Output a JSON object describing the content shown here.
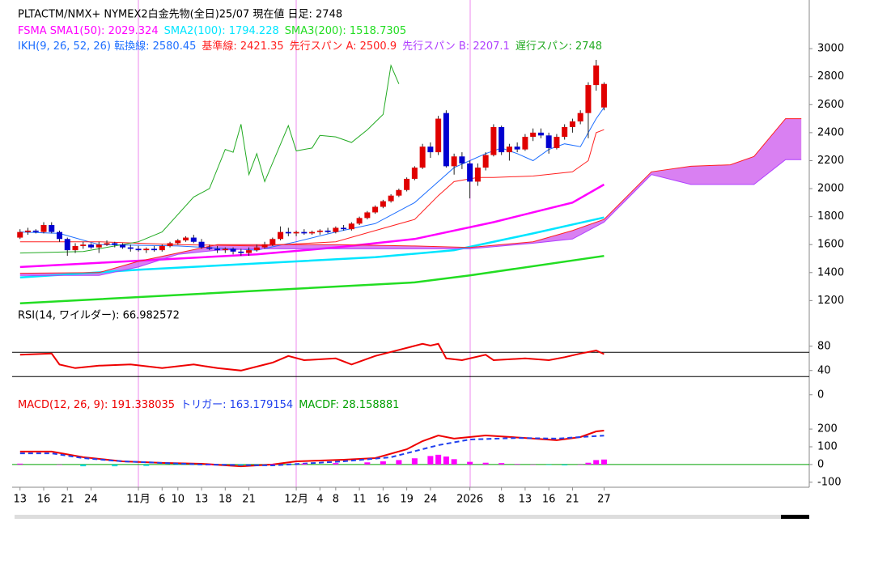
{
  "chart_data": [
    {
      "type": "candlestick",
      "title": "PLTACTM/NMX+ NYMEX2白金先物(全日)25/07  現在値 日足: 2748",
      "xlim": [
        -1,
        100
      ],
      "ylim": [
        1150,
        3290
      ],
      "yticks": [
        1200,
        1400,
        1600,
        1800,
        2000,
        2200,
        2400,
        2600,
        2800,
        3000
      ],
      "up_color": "#e00000",
      "down_color": "#0000d0",
      "x": [
        0,
        1,
        2,
        3,
        4,
        5,
        6,
        7,
        8,
        9,
        10,
        11,
        12,
        13,
        14,
        15,
        16,
        17,
        18,
        19,
        20,
        21,
        22,
        23,
        24,
        25,
        26,
        27,
        28,
        29,
        30,
        31,
        32,
        33,
        34,
        35,
        36,
        37,
        38,
        39,
        40,
        41,
        42,
        43,
        44,
        45,
        46,
        47,
        48,
        49,
        50,
        51,
        52,
        53,
        54,
        55,
        56,
        57,
        58,
        59,
        60,
        61,
        62,
        63,
        64,
        65,
        66,
        67,
        68,
        69,
        70,
        71,
        72,
        73,
        74
      ],
      "open": [
        1650,
        1690,
        1700,
        1690,
        1740,
        1690,
        1640,
        1560,
        1590,
        1600,
        1580,
        1600,
        1610,
        1600,
        1580,
        1570,
        1560,
        1570,
        1560,
        1590,
        1610,
        1630,
        1650,
        1620,
        1580,
        1570,
        1560,
        1570,
        1550,
        1540,
        1560,
        1580,
        1600,
        1640,
        1690,
        1680,
        1690,
        1680,
        1690,
        1700,
        1690,
        1720,
        1710,
        1750,
        1790,
        1830,
        1870,
        1910,
        1950,
        1990,
        2070,
        2150,
        2300,
        2260,
        2540,
        2160,
        2230,
        2180,
        2050,
        2150,
        2240,
        2440,
        2260,
        2300,
        2280,
        2370,
        2400,
        2380,
        2290,
        2370,
        2440,
        2480,
        2540,
        2740,
        2580
      ],
      "high": [
        1710,
        1720,
        1710,
        1760,
        1760,
        1700,
        1650,
        1610,
        1620,
        1610,
        1620,
        1630,
        1620,
        1610,
        1600,
        1590,
        1580,
        1590,
        1600,
        1620,
        1640,
        1660,
        1670,
        1640,
        1600,
        1590,
        1580,
        1580,
        1570,
        1580,
        1600,
        1620,
        1650,
        1730,
        1720,
        1700,
        1710,
        1700,
        1710,
        1720,
        1730,
        1740,
        1760,
        1800,
        1840,
        1880,
        1920,
        1960,
        2000,
        2080,
        2160,
        2320,
        2330,
        2520,
        2560,
        2250,
        2260,
        2200,
        2180,
        2260,
        2460,
        2450,
        2320,
        2330,
        2390,
        2430,
        2430,
        2400,
        2390,
        2460,
        2500,
        2560,
        2760,
        2920,
        2760
      ],
      "low": [
        1640,
        1670,
        1680,
        1680,
        1680,
        1620,
        1520,
        1540,
        1570,
        1570,
        1540,
        1590,
        1580,
        1570,
        1550,
        1550,
        1540,
        1550,
        1550,
        1580,
        1600,
        1620,
        1610,
        1570,
        1560,
        1540,
        1540,
        1530,
        1520,
        1520,
        1550,
        1570,
        1590,
        1630,
        1660,
        1660,
        1670,
        1670,
        1670,
        1680,
        1680,
        1700,
        1700,
        1740,
        1780,
        1820,
        1860,
        1900,
        1940,
        1980,
        2060,
        2140,
        2220,
        2240,
        2150,
        2100,
        2140,
        1930,
        2020,
        2130,
        2230,
        2240,
        2200,
        2260,
        2270,
        2340,
        2360,
        2250,
        2280,
        2350,
        2400,
        2460,
        2360,
        2700,
        2560
      ],
      "close": [
        1690,
        1700,
        1690,
        1740,
        1690,
        1640,
        1560,
        1590,
        1600,
        1580,
        1600,
        1610,
        1600,
        1580,
        1570,
        1560,
        1570,
        1560,
        1590,
        1610,
        1630,
        1650,
        1620,
        1580,
        1570,
        1560,
        1570,
        1550,
        1540,
        1560,
        1580,
        1600,
        1640,
        1690,
        1680,
        1690,
        1680,
        1690,
        1700,
        1690,
        1720,
        1710,
        1750,
        1790,
        1830,
        1870,
        1910,
        1950,
        1990,
        2070,
        2150,
        2300,
        2260,
        2500,
        2160,
        2230,
        2180,
        2050,
        2150,
        2240,
        2440,
        2260,
        2300,
        2280,
        2370,
        2400,
        2380,
        2290,
        2370,
        2440,
        2480,
        2540,
        2740,
        2880,
        2748
      ],
      "series": [
        {
          "name": "FSMA SMA1(50): 2029.324",
          "color": "#ff00ff",
          "x": [
            0,
            10,
            20,
            30,
            40,
            50,
            60,
            70,
            74
          ],
          "values": [
            1440,
            1470,
            1500,
            1530,
            1580,
            1640,
            1760,
            1900,
            2029
          ]
        },
        {
          "name": "SMA2(100): 1794.228",
          "color": "#00e5ff",
          "x": [
            0,
            15,
            30,
            45,
            55,
            65,
            74
          ],
          "values": [
            1365,
            1420,
            1465,
            1510,
            1560,
            1680,
            1794
          ]
        },
        {
          "name": "SMA3(200): 1518.7305",
          "color": "#22dd22",
          "x": [
            0,
            30,
            50,
            57,
            74
          ],
          "values": [
            1180,
            1270,
            1330,
            1380,
            1519
          ]
        }
      ],
      "ichimoku": {
        "cloud_color": "#cc55ee",
        "series": [
          {
            "name": "IKH(9, 26, 52, 26) 転換線: 2580.45",
            "color": "#1e6fff",
            "x": [
              0,
              5,
              10,
              20,
              30,
              35,
              40,
              45,
              50,
              52,
              55,
              57,
              59,
              61,
              63,
              65,
              67,
              69,
              71,
              72,
              73,
              74
            ],
            "values": [
              1690,
              1680,
              1600,
              1590,
              1560,
              1620,
              1690,
              1750,
              1900,
              2000,
              2150,
              2200,
              2250,
              2290,
              2250,
              2200,
              2280,
              2320,
              2300,
              2400,
              2500,
              2580
            ]
          },
          {
            "name": "基準線: 2421.35",
            "color": "#ff2020",
            "x": [
              0,
              10,
              20,
              30,
              40,
              45,
              50,
              53,
              55,
              58,
              60,
              65,
              70,
              72,
              73,
              74
            ],
            "values": [
              1620,
              1620,
              1600,
              1590,
              1620,
              1700,
              1780,
              1950,
              2050,
              2080,
              2080,
              2090,
              2120,
              2200,
              2400,
              2421
            ]
          },
          {
            "name": "先行スパン A: 2500.9",
            "color": "#ff2020",
            "x": [
              0,
              10,
              15,
              20,
              25,
              30,
              40,
              50,
              57,
              65,
              70,
              74,
              77,
              80,
              85,
              90,
              93,
              97,
              99
            ],
            "values": [
              1395,
              1400,
              1480,
              1540,
              1600,
              1600,
              1600,
              1590,
              1580,
              1620,
              1700,
              1780,
              1950,
              2120,
              2160,
              2170,
              2230,
              2500,
              2500
            ]
          },
          {
            "name": "先行スパン B: 2207.1",
            "color": "#b040ff",
            "x": [
              0,
              10,
              15,
              20,
              25,
              30,
              40,
              50,
              57,
              65,
              70,
              74,
              77,
              80,
              85,
              90,
              93,
              97,
              99
            ],
            "values": [
              1380,
              1380,
              1440,
              1530,
              1560,
              1570,
              1570,
              1570,
              1570,
              1610,
              1640,
              1760,
              1930,
              2100,
              2030,
              2030,
              2030,
              2207,
              2207
            ]
          },
          {
            "name": "遅行スパン: 2748",
            "color": "#22aa22",
            "x": [
              0,
              8,
              15,
              18,
              22,
              24,
              26,
              27,
              28,
              29,
              30,
              31,
              34,
              35,
              37,
              38,
              40,
              42,
              44,
              46,
              47,
              48
            ],
            "values": [
              1540,
              1550,
              1620,
              1690,
              1940,
              2000,
              2280,
              2260,
              2460,
              2100,
              2250,
              2050,
              2450,
              2270,
              2290,
              2380,
              2370,
              2330,
              2420,
              2530,
              2880,
              2748
            ]
          }
        ]
      }
    },
    {
      "type": "line",
      "title": "RSI(14, ワイルダー): 66.982572",
      "xlim": [
        -1,
        100
      ],
      "ylim": [
        -3,
        137
      ],
      "yticks": [
        80,
        40,
        0
      ],
      "hlines": [
        70,
        30
      ],
      "hline_color": "#000000",
      "series": [
        {
          "color": "#ee0000",
          "x": [
            0,
            4,
            5,
            7,
            10,
            14,
            18,
            22,
            25,
            28,
            32,
            34,
            36,
            40,
            42,
            45,
            48,
            51,
            52,
            53,
            54,
            56,
            59,
            60,
            64,
            67,
            69,
            71,
            73,
            74
          ],
          "values": [
            66,
            68,
            50,
            44,
            48,
            50,
            44,
            50,
            44,
            40,
            53,
            64,
            57,
            60,
            50,
            64,
            74,
            84,
            81,
            84,
            60,
            57,
            66,
            57,
            60,
            57,
            62,
            68,
            73,
            66.98
          ]
        }
      ]
    },
    {
      "type": "line",
      "xlim": [
        -1,
        100
      ],
      "ylim": [
        -142,
        374
      ],
      "yticks": [
        200,
        100,
        0,
        -100
      ],
      "hlines": [
        0
      ],
      "hline_color": "#00a000",
      "xticks": [
        {
          "value": 0,
          "label": "13"
        },
        {
          "value": 3,
          "label": "16"
        },
        {
          "value": 6,
          "label": "21"
        },
        {
          "value": 9,
          "label": "24"
        },
        {
          "value": 15,
          "label": "11月",
          "color": "#a020f0"
        },
        {
          "value": 18,
          "label": "6"
        },
        {
          "value": 20,
          "label": "10"
        },
        {
          "value": 23,
          "label": "13"
        },
        {
          "value": 26,
          "label": "18"
        },
        {
          "value": 29,
          "label": "21"
        },
        {
          "value": 35,
          "label": "12月",
          "color": "#a020f0"
        },
        {
          "value": 38,
          "label": "4"
        },
        {
          "value": 40,
          "label": "8"
        },
        {
          "value": 43,
          "label": "11"
        },
        {
          "value": 46,
          "label": "16"
        },
        {
          "value": 49,
          "label": "19"
        },
        {
          "value": 52,
          "label": "24"
        },
        {
          "value": 57,
          "label": "2026",
          "color": "#a020f0"
        },
        {
          "value": 61,
          "label": "8"
        },
        {
          "value": 64,
          "label": "13"
        },
        {
          "value": 67,
          "label": "16"
        },
        {
          "value": 70,
          "label": "21"
        },
        {
          "value": 74,
          "label": "27"
        }
      ],
      "series": [
        {
          "name": "MACD(12, 26, 9): 191.338035",
          "type": "line",
          "color": "#ee0000",
          "x": [
            0,
            4,
            8,
            13,
            18,
            23,
            28,
            32,
            35,
            41,
            45,
            49,
            51,
            53,
            55,
            59,
            64,
            68,
            71,
            73,
            74
          ],
          "values": [
            73,
            73,
            41,
            18,
            9,
            4,
            -10,
            0,
            18,
            27,
            36,
            86,
            132,
            164,
            146,
            164,
            150,
            137,
            155,
            187,
            191.34
          ]
        },
        {
          "name": "トリガー: 163.179154",
          "type": "line",
          "dash": true,
          "color": "#2040ee",
          "x": [
            0,
            4,
            8,
            13,
            23,
            32,
            41,
            47,
            53,
            57,
            63,
            68,
            74
          ],
          "values": [
            63,
            63,
            36,
            18,
            0,
            -5,
            18,
            41,
            109,
            141,
            150,
            146,
            163.18
          ]
        },
        {
          "name": "MACDF: 28.158881",
          "type": "bar",
          "color": "#ff00ff",
          "negative_color": "#00d8d8",
          "legend_color": "#00a000",
          "x": [
            0,
            5,
            8,
            12,
            16,
            20,
            24,
            28,
            32,
            36,
            40,
            44,
            46,
            48,
            50,
            52,
            53,
            54,
            55,
            57,
            59,
            61,
            63,
            65,
            67,
            69,
            71,
            72,
            73,
            74
          ],
          "values": [
            5,
            0,
            -10,
            -10,
            -8,
            -3,
            0,
            -5,
            2,
            5,
            8,
            12,
            18,
            25,
            35,
            48,
            55,
            45,
            30,
            15,
            10,
            8,
            3,
            0,
            -3,
            -5,
            0,
            10,
            25,
            28.16
          ]
        }
      ]
    }
  ]
}
